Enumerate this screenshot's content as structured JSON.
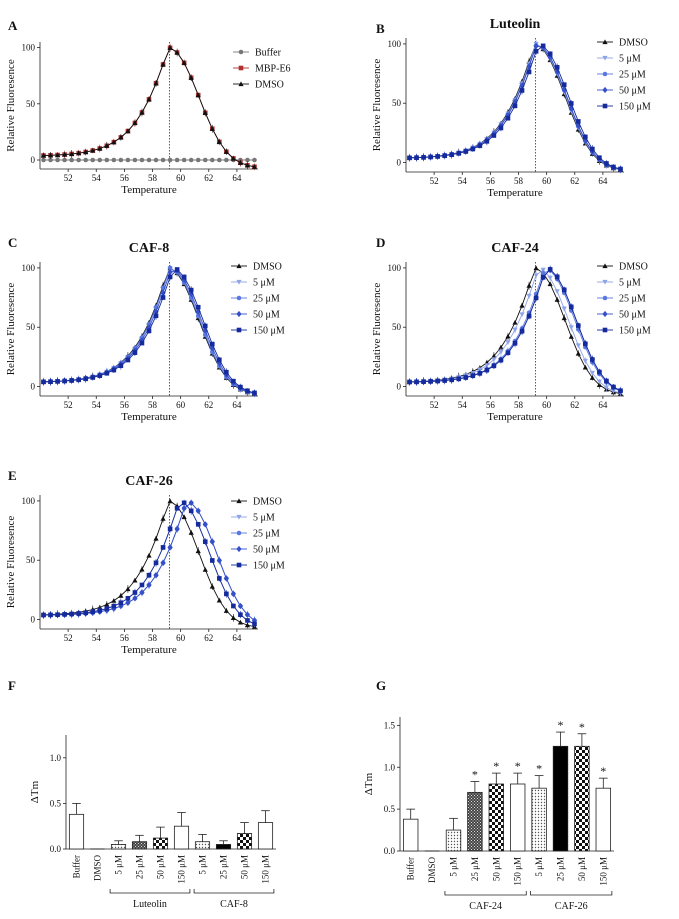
{
  "figure": {
    "panels": {
      "A": "A",
      "B": "B",
      "C": "C",
      "D": "D",
      "E": "E",
      "F": "F",
      "G": "G"
    }
  },
  "chart_data": [
    {
      "id": "A",
      "type": "line",
      "panel_label": "A",
      "title": "",
      "xlabel": "Temperature",
      "ylabel": "Relative Fluoresence",
      "xlim": [
        50,
        65.5
      ],
      "ylim": [
        -8,
        105
      ],
      "xticks": [
        52,
        54,
        56,
        58,
        60,
        62,
        64
      ],
      "yticks": [
        0,
        50,
        100
      ],
      "xtick_labels": [
        "52",
        "54",
        "56",
        "58",
        "60",
        "62",
        "64"
      ],
      "ytick_labels": [
        "0",
        "50",
        "100"
      ],
      "vline": 59.2,
      "tm": 59.2,
      "series": [
        {
          "name": "Buffer",
          "color": "#777777",
          "marker": "circle",
          "flat": 0
        },
        {
          "name": "MBP-E6",
          "color": "#b03030",
          "marker": "square",
          "shift": 0
        },
        {
          "name": "DMSO",
          "color": "#111111",
          "marker": "triangle",
          "shift": 0
        }
      ]
    },
    {
      "id": "B",
      "type": "line",
      "panel_label": "B",
      "title": "Luteolin",
      "xlabel": "Temperature",
      "ylabel": "Relative Fluoresence",
      "xlim": [
        50,
        65.5
      ],
      "ylim": [
        -8,
        105
      ],
      "xticks": [
        52,
        54,
        56,
        58,
        60,
        62,
        64
      ],
      "yticks": [
        0,
        50,
        100
      ],
      "xtick_labels": [
        "52",
        "54",
        "56",
        "58",
        "60",
        "62",
        "64"
      ],
      "ytick_labels": [
        "0",
        "50",
        "100"
      ],
      "vline": 59.2,
      "tm": 59.2,
      "series": [
        {
          "name": "DMSO",
          "color": "#111111",
          "marker": "triangle",
          "shift": 0
        },
        {
          "name": "5 μM",
          "color": "#8fa3e8",
          "marker": "triangle-down",
          "shift": 0.05
        },
        {
          "name": "25 μM",
          "color": "#5b78e0",
          "marker": "circle",
          "shift": 0.1
        },
        {
          "name": "50 μM",
          "color": "#3550c8",
          "marker": "diamond",
          "shift": 0.12
        },
        {
          "name": "150 μM",
          "color": "#152a9c",
          "marker": "square",
          "shift": 0.25
        }
      ]
    },
    {
      "id": "C",
      "type": "line",
      "panel_label": "C",
      "title": "CAF-8",
      "xlabel": "Temperature",
      "ylabel": "Relative Fluoresence",
      "xlim": [
        50,
        65.5
      ],
      "ylim": [
        -8,
        105
      ],
      "xticks": [
        52,
        54,
        56,
        58,
        60,
        62,
        64
      ],
      "yticks": [
        0,
        50,
        100
      ],
      "xtick_labels": [
        "52",
        "54",
        "56",
        "58",
        "60",
        "62",
        "64"
      ],
      "ytick_labels": [
        "0",
        "50",
        "100"
      ],
      "vline": 59.2,
      "tm": 59.2,
      "series": [
        {
          "name": "DMSO",
          "color": "#111111",
          "marker": "triangle",
          "shift": 0
        },
        {
          "name": "5 μM",
          "color": "#8fa3e8",
          "marker": "triangle-down",
          "shift": 0.08
        },
        {
          "name": "25 μM",
          "color": "#5b78e0",
          "marker": "circle",
          "shift": 0.05
        },
        {
          "name": "50 μM",
          "color": "#3550c8",
          "marker": "diamond",
          "shift": 0.17
        },
        {
          "name": "150 μM",
          "color": "#152a9c",
          "marker": "square",
          "shift": 0.29
        }
      ]
    },
    {
      "id": "D",
      "type": "line",
      "panel_label": "D",
      "title": "CAF-24",
      "xlabel": "Temperature",
      "ylabel": "Relative Fluoresence",
      "xlim": [
        50,
        65.5
      ],
      "ylim": [
        -8,
        105
      ],
      "xticks": [
        52,
        54,
        56,
        58,
        60,
        62,
        64
      ],
      "yticks": [
        0,
        50,
        100
      ],
      "xtick_labels": [
        "52",
        "54",
        "56",
        "58",
        "60",
        "62",
        "64"
      ],
      "ytick_labels": [
        "0",
        "50",
        "100"
      ],
      "vline": 59.2,
      "tm": 59.2,
      "series": [
        {
          "name": "DMSO",
          "color": "#111111",
          "marker": "triangle",
          "shift": 0
        },
        {
          "name": "5 μM",
          "color": "#8fa3e8",
          "marker": "triangle-down",
          "shift": 0.25
        },
        {
          "name": "25 μM",
          "color": "#5b78e0",
          "marker": "circle",
          "shift": 0.7
        },
        {
          "name": "50 μM",
          "color": "#3550c8",
          "marker": "diamond",
          "shift": 0.8
        },
        {
          "name": "150 μM",
          "color": "#152a9c",
          "marker": "square",
          "shift": 0.8
        }
      ]
    },
    {
      "id": "E",
      "type": "line",
      "panel_label": "E",
      "title": "CAF-26",
      "xlabel": "Temperature",
      "ylabel": "Relative Fluoresence",
      "xlim": [
        50,
        65.5
      ],
      "ylim": [
        -8,
        105
      ],
      "xticks": [
        52,
        54,
        56,
        58,
        60,
        62,
        64
      ],
      "yticks": [
        0,
        50,
        100
      ],
      "xtick_labels": [
        "52",
        "54",
        "56",
        "58",
        "60",
        "62",
        "64"
      ],
      "ytick_labels": [
        "0",
        "50",
        "100"
      ],
      "vline": 59.2,
      "tm": 59.2,
      "series": [
        {
          "name": "DMSO",
          "color": "#111111",
          "marker": "triangle",
          "shift": 0
        },
        {
          "name": "5 μM",
          "color": "#8fa3e8",
          "marker": "triangle-down",
          "shift": 0.75
        },
        {
          "name": "25 μM",
          "color": "#5b78e0",
          "marker": "circle",
          "shift": 1.25
        },
        {
          "name": "50 μM",
          "color": "#3550c8",
          "marker": "diamond",
          "shift": 1.25
        },
        {
          "name": "150 μM",
          "color": "#152a9c",
          "marker": "square",
          "shift": 0.75
        }
      ]
    },
    {
      "id": "F",
      "type": "bar",
      "panel_label": "F",
      "title": "",
      "ylabel": "ΔTm",
      "ylim": [
        0,
        1.25
      ],
      "yticks": [
        0,
        0.5,
        1.0
      ],
      "ytick_labels": [
        "0.0",
        "0.5",
        "1.0"
      ],
      "categories": [
        "Buffer",
        "DMSO",
        "5 μM",
        "25 μM",
        "50 μM",
        "150 μM",
        "5 μM",
        "25 μM",
        "50 μM",
        "150 μM"
      ],
      "values": [
        0.38,
        0.0,
        0.05,
        0.08,
        0.12,
        0.25,
        0.08,
        0.05,
        0.17,
        0.29
      ],
      "errors": [
        0.12,
        0.0,
        0.04,
        0.07,
        0.12,
        0.15,
        0.08,
        0.04,
        0.12,
        0.13
      ],
      "fills": [
        "white",
        "white",
        "dots",
        "dense",
        "check",
        "white",
        "dots",
        "black",
        "check",
        "white"
      ],
      "significant": [
        false,
        false,
        false,
        false,
        false,
        false,
        false,
        false,
        false,
        false
      ],
      "groups": [
        {
          "label": "Luteolin",
          "start": 2,
          "end": 5
        },
        {
          "label": "CAF-8",
          "start": 6,
          "end": 9
        }
      ]
    },
    {
      "id": "G",
      "type": "bar",
      "panel_label": "G",
      "title": "",
      "ylabel": "ΔTm",
      "ylim": [
        0,
        1.6
      ],
      "yticks": [
        0,
        0.5,
        1.0,
        1.5
      ],
      "ytick_labels": [
        "0.0",
        "0.5",
        "1.0",
        "1.5"
      ],
      "categories": [
        "Buffer",
        "DMSO",
        "5 μM",
        "25 μM",
        "50 μM",
        "150 μM",
        "5 μM",
        "25 μM",
        "50 μM",
        "150 μM"
      ],
      "values": [
        0.38,
        0.0,
        0.25,
        0.7,
        0.8,
        0.8,
        0.75,
        1.25,
        1.25,
        0.75
      ],
      "errors": [
        0.12,
        0.0,
        0.14,
        0.13,
        0.13,
        0.13,
        0.15,
        0.17,
        0.15,
        0.12
      ],
      "fills": [
        "white",
        "white",
        "dots",
        "dense",
        "check",
        "white",
        "dots",
        "black",
        "check",
        "white"
      ],
      "significant": [
        false,
        false,
        false,
        true,
        true,
        true,
        true,
        true,
        true,
        true
      ],
      "star": "*",
      "groups": [
        {
          "label": "CAF-24",
          "start": 2,
          "end": 5
        },
        {
          "label": "CAF-26",
          "start": 6,
          "end": 9
        }
      ]
    }
  ]
}
